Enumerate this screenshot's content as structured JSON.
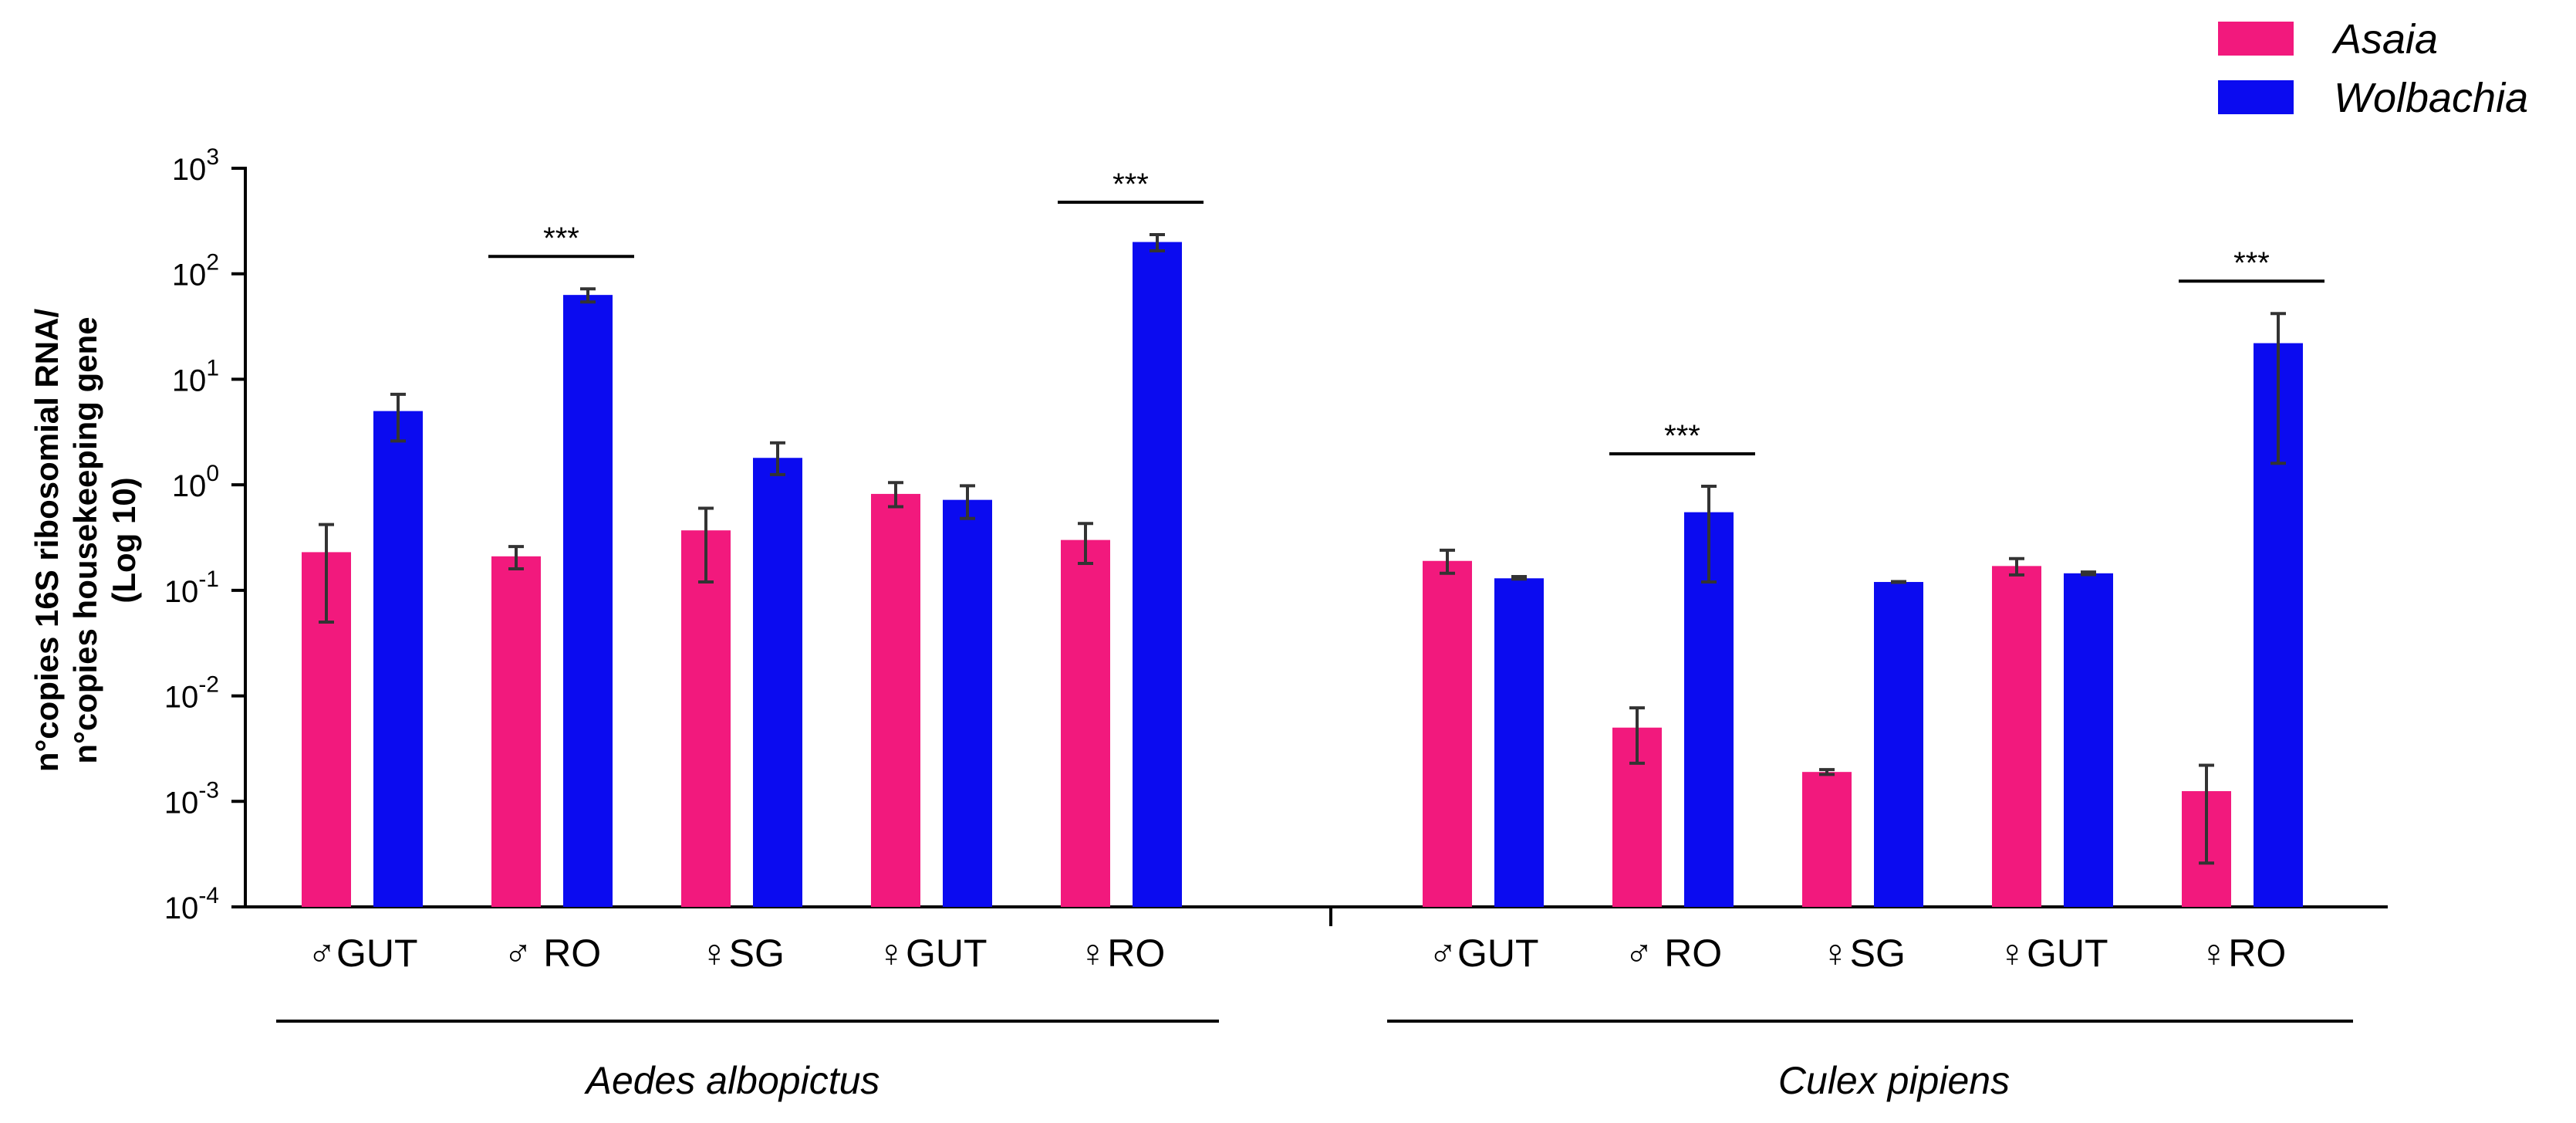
{
  "chart_data": {
    "type": "bar",
    "scale": "log10",
    "ylim": [
      0.0001,
      1000
    ],
    "yticks": [
      {
        "value": 0.0001,
        "base": "10",
        "exp": "-4"
      },
      {
        "value": 0.001,
        "base": "10",
        "exp": "-3"
      },
      {
        "value": 0.01,
        "base": "10",
        "exp": "-2"
      },
      {
        "value": 0.1,
        "base": "10",
        "exp": "-1"
      },
      {
        "value": 1,
        "base": "10",
        "exp": "0"
      },
      {
        "value": 10,
        "base": "10",
        "exp": "1"
      },
      {
        "value": 100,
        "base": "10",
        "exp": "2"
      },
      {
        "value": 1000,
        "base": "10",
        "exp": "3"
      }
    ],
    "ylabel": [
      "n°copies 16S  ribosomial RNA/",
      "n°copies  housekeeping gene",
      "(Log 10)"
    ],
    "series": [
      {
        "name": "Asaia",
        "color": "#f2197d"
      },
      {
        "name": "Wolbachia",
        "color": "#0b0bf0"
      }
    ],
    "groups": [
      {
        "name": "Aedes albopictus",
        "categories": [
          {
            "label": "♂GUT",
            "values": [
              0.23,
              5.0
            ],
            "err_low": [
              0.05,
              2.6
            ],
            "err_high": [
              0.42,
              7.2
            ]
          },
          {
            "label": "♂ RO",
            "values": [
              0.21,
              63
            ],
            "err_low": [
              0.16,
              54
            ],
            "err_high": [
              0.26,
              72
            ],
            "sig": "***"
          },
          {
            "label": "♀SG",
            "values": [
              0.37,
              1.8
            ],
            "err_low": [
              0.12,
              1.25
            ],
            "err_high": [
              0.6,
              2.5
            ]
          },
          {
            "label": "♀GUT",
            "values": [
              0.82,
              0.72
            ],
            "err_low": [
              0.62,
              0.48
            ],
            "err_high": [
              1.05,
              0.98
            ]
          },
          {
            "label": "♀RO",
            "values": [
              0.3,
              200
            ],
            "err_low": [
              0.18,
              165
            ],
            "err_high": [
              0.43,
              235
            ],
            "sig": "***"
          }
        ]
      },
      {
        "name": "Culex pipiens",
        "categories": [
          {
            "label": "♂GUT",
            "values": [
              0.19,
              0.13
            ],
            "err_low": [
              0.145,
              0.128
            ],
            "err_high": [
              0.24,
              0.135
            ]
          },
          {
            "label": "♂ RO",
            "values": [
              0.005,
              0.55
            ],
            "err_low": [
              0.0023,
              0.12
            ],
            "err_high": [
              0.0077,
              0.97
            ],
            "sig": "***"
          },
          {
            "label": "♀SG",
            "values": [
              0.0019,
              0.12
            ],
            "err_low": [
              0.0018,
              0.119
            ],
            "err_high": [
              0.002,
              0.121
            ]
          },
          {
            "label": "♀GUT",
            "values": [
              0.17,
              0.145
            ],
            "err_low": [
              0.14,
              0.141
            ],
            "err_high": [
              0.2,
              0.149
            ]
          },
          {
            "label": "♀RO",
            "values": [
              0.00125,
              22
            ],
            "err_low": [
              0.00026,
              1.6
            ],
            "err_high": [
              0.0022,
              42
            ],
            "sig": "***"
          }
        ]
      }
    ],
    "legend_position": "top-right"
  }
}
